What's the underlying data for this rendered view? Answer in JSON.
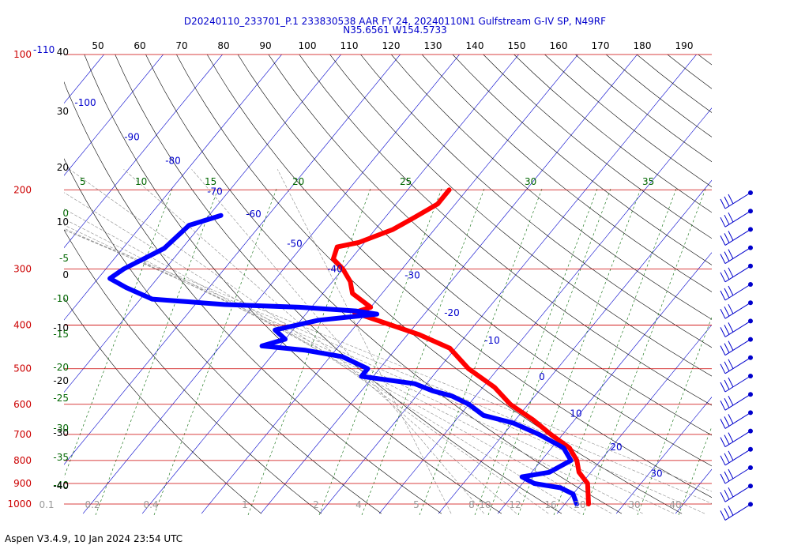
{
  "header": {
    "title_line1": "D20240110_233701_P.1 233830538 AAR FY 24, 20240110N1 Gulfstream G-IV SP, N49RF",
    "title_line2": "N35.6561 W154.5733"
  },
  "footer": {
    "text": "Aspen V3.4.9, 10 Jan 2024  23:54 UTC"
  },
  "colors": {
    "isobar": "#cc0000",
    "isotherm": "#0000cc",
    "dry_adiabat": "#000000",
    "moist_adiabat": "#888888",
    "mixing_ratio": "#006600",
    "temperature": "#ff0000",
    "dewpoint": "#0000ff",
    "wind": "#0000cc"
  },
  "chart_data": {
    "type": "line",
    "pressure_levels_hPa": [
      {
        "value": 100,
        "label": "100"
      },
      {
        "value": 200,
        "label": "200"
      },
      {
        "value": 300,
        "label": "300"
      },
      {
        "value": 400,
        "label": "400"
      },
      {
        "value": 500,
        "label": "500"
      },
      {
        "value": 600,
        "label": "600"
      },
      {
        "value": 700,
        "label": "700"
      },
      {
        "value": 800,
        "label": "800"
      },
      {
        "value": 900,
        "label": "900"
      },
      {
        "value": 1000,
        "label": "1000"
      }
    ],
    "top_label_extra": "-110",
    "theta_labels_K": [
      "50",
      "60",
      "70",
      "80",
      "90",
      "100",
      "110",
      "120",
      "130",
      "140",
      "150",
      "160",
      "170",
      "180",
      "190"
    ],
    "isotherm_labels": [
      {
        "text": "-100",
        "p": 130
      },
      {
        "text": "-90",
        "p": 155
      },
      {
        "text": "-80",
        "p": 175
      },
      {
        "text": "-70",
        "p": 205
      },
      {
        "text": "-60",
        "p": 230
      },
      {
        "text": "-50",
        "p": 268
      },
      {
        "text": "-40",
        "p": 305
      },
      {
        "text": "-30",
        "p": 315
      },
      {
        "text": "-20",
        "p": 382
      },
      {
        "text": "-10",
        "p": 440
      },
      {
        "text": "0",
        "p": 530
      },
      {
        "text": "10",
        "p": 640
      },
      {
        "text": "20",
        "p": 760
      },
      {
        "text": "30",
        "p": 870
      }
    ],
    "moist_adiabat_labels": [
      {
        "text": "5",
        "x": 101
      },
      {
        "text": "10",
        "x": 171
      },
      {
        "text": "15",
        "x": 259
      },
      {
        "text": "20",
        "x": 370
      },
      {
        "text": "25",
        "x": 506
      },
      {
        "text": "30",
        "x": 664
      },
      {
        "text": "35",
        "x": 813
      }
    ],
    "left_scale_labels": [
      {
        "text": "40",
        "color": "black",
        "y": 70
      },
      {
        "text": "30",
        "color": "black",
        "y": 145
      },
      {
        "text": "20",
        "color": "black",
        "y": 216
      },
      {
        "text": "10",
        "color": "black",
        "y": 285
      },
      {
        "text": "0",
        "color": "black",
        "y": 352
      },
      {
        "text": "-10",
        "color": "black",
        "y": 419
      },
      {
        "text": "-20",
        "color": "black",
        "y": 486
      },
      {
        "text": "-30",
        "color": "black",
        "y": 552
      },
      {
        "text": "0",
        "color": "green",
        "y": 274
      },
      {
        "text": "-5",
        "color": "green",
        "y": 331
      },
      {
        "text": "-10",
        "color": "green",
        "y": 382
      },
      {
        "text": "-15",
        "color": "green",
        "y": 427
      },
      {
        "text": "-20",
        "color": "green",
        "y": 469
      },
      {
        "text": "-25",
        "color": "green",
        "y": 508
      },
      {
        "text": "-30",
        "color": "green",
        "y": 546
      },
      {
        "text": "-35",
        "color": "green",
        "y": 583
      },
      {
        "text": "-40",
        "color": "green",
        "y": 618
      },
      {
        "text": "-40",
        "color": "black",
        "y": 619
      }
    ],
    "mixing_ratio_labels": [
      "0.1",
      "0.2",
      "0.4",
      "1",
      "2",
      "4",
      "5",
      "8",
      "10",
      "12",
      "16",
      "20",
      "30",
      "40"
    ],
    "mixing_ratio_label_x": [
      59,
      117,
      191,
      310,
      400,
      454,
      527,
      597,
      614,
      652,
      697,
      734,
      803,
      855
    ],
    "temperature_profile": [
      {
        "p": 200,
        "t": -53
      },
      {
        "p": 215,
        "t": -53
      },
      {
        "p": 230,
        "t": -55
      },
      {
        "p": 245,
        "t": -57
      },
      {
        "p": 262,
        "t": -61
      },
      {
        "p": 268,
        "t": -64
      },
      {
        "p": 285,
        "t": -63
      },
      {
        "p": 300,
        "t": -60
      },
      {
        "p": 320,
        "t": -57
      },
      {
        "p": 340,
        "t": -55
      },
      {
        "p": 365,
        "t": -50
      },
      {
        "p": 375,
        "t": -52
      },
      {
        "p": 420,
        "t": -38
      },
      {
        "p": 450,
        "t": -31
      },
      {
        "p": 500,
        "t": -25
      },
      {
        "p": 550,
        "t": -18
      },
      {
        "p": 600,
        "t": -13
      },
      {
        "p": 650,
        "t": -7
      },
      {
        "p": 700,
        "t": -2
      },
      {
        "p": 750,
        "t": 3
      },
      {
        "p": 800,
        "t": 6
      },
      {
        "p": 850,
        "t": 8
      },
      {
        "p": 900,
        "t": 11
      },
      {
        "p": 1000,
        "t": 14
      }
    ],
    "dewpoint_profile": [
      {
        "p": 228,
        "td": -88
      },
      {
        "p": 240,
        "td": -92
      },
      {
        "p": 270,
        "td": -93
      },
      {
        "p": 300,
        "td": -97
      },
      {
        "p": 315,
        "td": -98
      },
      {
        "p": 330,
        "td": -94
      },
      {
        "p": 350,
        "td": -88
      },
      {
        "p": 360,
        "td": -75
      },
      {
        "p": 365,
        "td": -62
      },
      {
        "p": 372,
        "td": -52
      },
      {
        "p": 378,
        "td": -48
      },
      {
        "p": 390,
        "td": -57
      },
      {
        "p": 410,
        "td": -63
      },
      {
        "p": 430,
        "td": -60
      },
      {
        "p": 445,
        "td": -63
      },
      {
        "p": 455,
        "td": -55
      },
      {
        "p": 470,
        "td": -48
      },
      {
        "p": 500,
        "td": -42
      },
      {
        "p": 520,
        "td": -42
      },
      {
        "p": 540,
        "td": -32
      },
      {
        "p": 560,
        "td": -28
      },
      {
        "p": 575,
        "td": -24
      },
      {
        "p": 600,
        "td": -20
      },
      {
        "p": 635,
        "td": -16
      },
      {
        "p": 660,
        "td": -10
      },
      {
        "p": 700,
        "td": -4
      },
      {
        "p": 750,
        "td": 2
      },
      {
        "p": 800,
        "td": 5
      },
      {
        "p": 850,
        "td": 3
      },
      {
        "p": 870,
        "td": -1
      },
      {
        "p": 900,
        "td": 2
      },
      {
        "p": 920,
        "td": 7
      },
      {
        "p": 950,
        "td": 10
      },
      {
        "p": 1000,
        "td": 12
      }
    ],
    "wind_barbs": [
      {
        "p": 200
      },
      {
        "p": 240
      },
      {
        "p": 275
      },
      {
        "p": 300
      },
      {
        "p": 345
      },
      {
        "p": 380
      },
      {
        "p": 410
      },
      {
        "p": 445
      },
      {
        "p": 480
      },
      {
        "p": 520
      },
      {
        "p": 580
      },
      {
        "p": 640
      },
      {
        "p": 700
      },
      {
        "p": 760
      },
      {
        "p": 820
      },
      {
        "p": 880
      },
      {
        "p": 940
      },
      {
        "p": 1000
      }
    ]
  }
}
